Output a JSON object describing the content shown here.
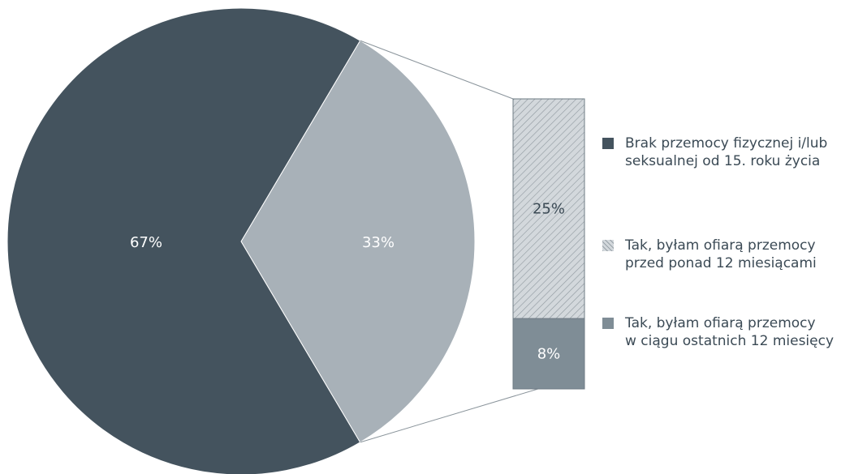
{
  "chart_data": {
    "type": "pie",
    "slices": [
      {
        "label": "Brak przemocy fizycznej i/lub seksualnej od 15. roku życia",
        "value": 67,
        "display": "67%",
        "color": "#44535e"
      },
      {
        "value": 33,
        "display": "33%",
        "color": "#a8b1b8"
      }
    ],
    "breakdown": {
      "type": "stacked_bar",
      "of_slice_display": "33%",
      "segments": [
        {
          "label": "Tak, byłam ofiarą przemocy przed ponad 12 miesiącami",
          "value": 25,
          "display": "25%",
          "pattern": "hatched",
          "color": "#d3d8dc"
        },
        {
          "label": "Tak, byłam ofiarą przemocy w ciągu ostatnich 12 miesięcy",
          "value": 8,
          "display": "8%",
          "color": "#7f8d96"
        }
      ]
    },
    "legend": {
      "position": "right",
      "items": [
        {
          "lines": [
            "Brak przemocy fizycznej i/lub",
            "seksualnej od 15. roku życia"
          ],
          "color": "#44535e",
          "pattern": "solid"
        },
        {
          "lines": [
            "Tak, byłam ofiarą przemocy",
            "przed ponad 12 miesiącami"
          ],
          "color": "#d3d8dc",
          "pattern": "hatched"
        },
        {
          "lines": [
            "Tak, byłam ofiarą przemocy",
            "w ciągu ostatnich 12 miesięcy"
          ],
          "color": "#7f8d96",
          "pattern": "solid"
        }
      ]
    }
  }
}
